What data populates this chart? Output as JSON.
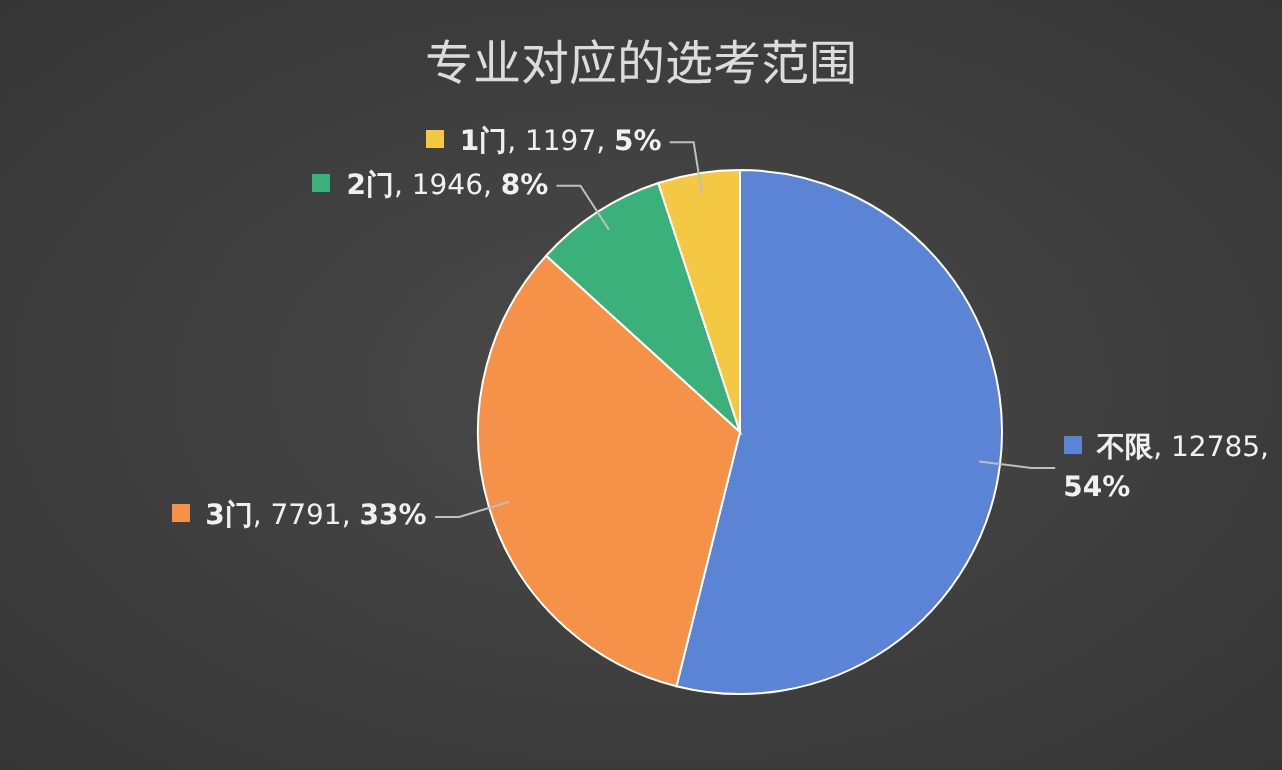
{
  "chart_data": {
    "type": "pie",
    "title": "专业对应的选考范围",
    "categories": [
      "不限",
      "3门",
      "2门",
      "1门"
    ],
    "values": [
      12785,
      7791,
      1946,
      1197
    ],
    "value_labels": [
      ", 12785, 54%",
      ", 7791, 33%",
      ", 1946, 8%",
      ", 1197, 5%"
    ],
    "colors": [
      "#5b84d6",
      "#f59148",
      "#3cb07a",
      "#f5c843"
    ],
    "legend": "left"
  }
}
